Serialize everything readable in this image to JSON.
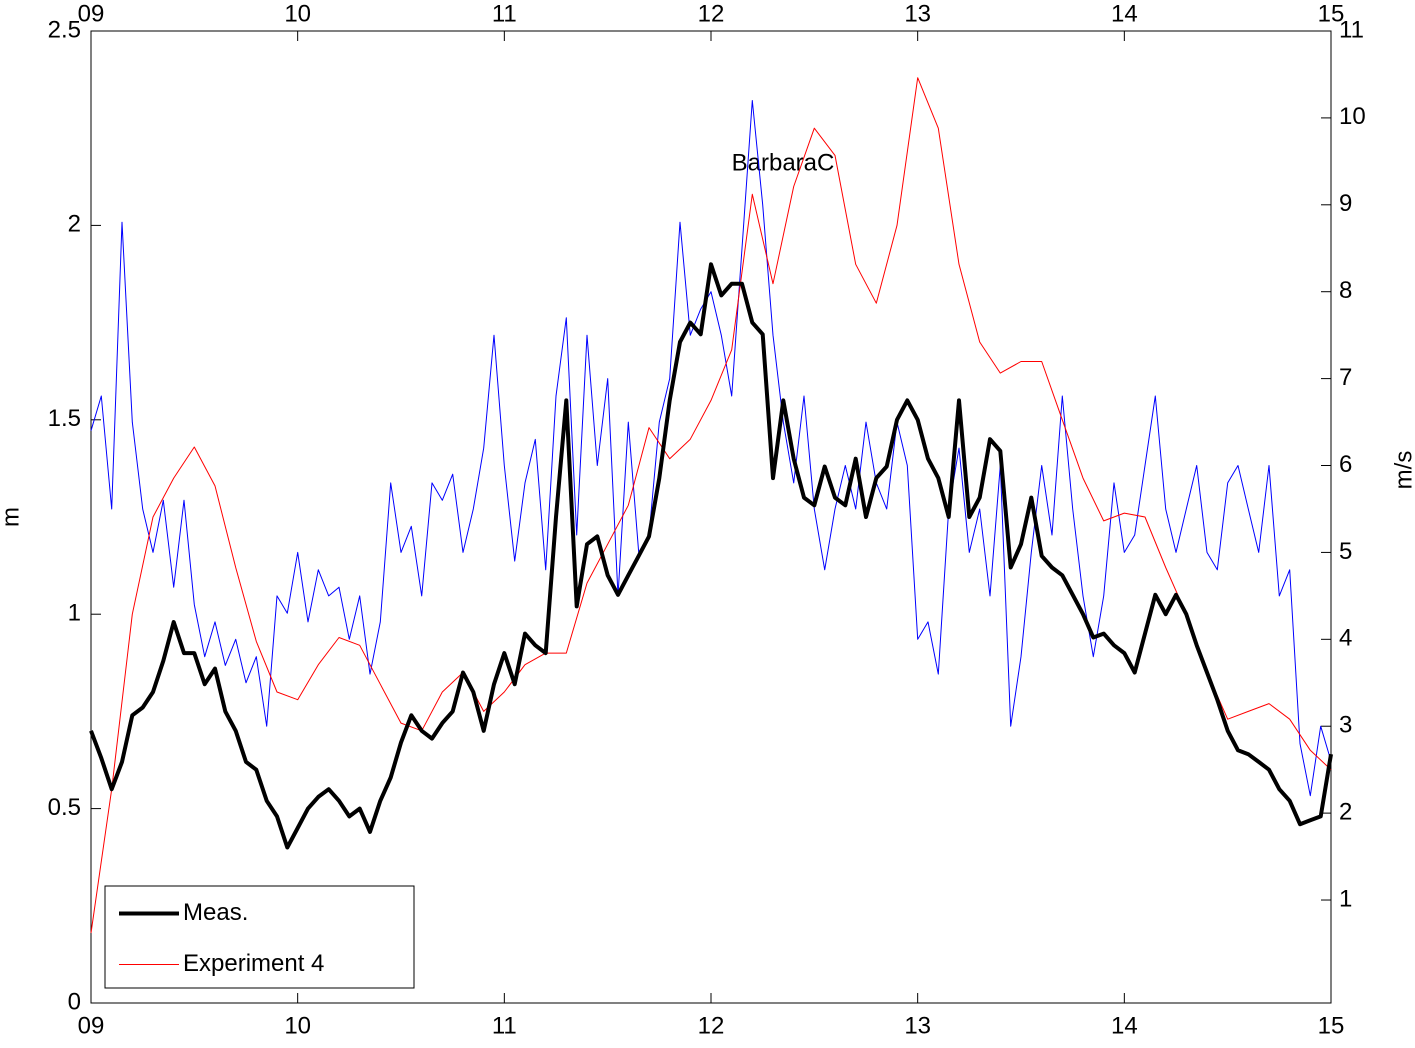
{
  "chart_data": {
    "type": "line",
    "annotation": "BarbaraC",
    "ylabel": "m",
    "y2label": "m/s",
    "xlim": [
      9,
      15
    ],
    "xticks": [
      {
        "value": 9,
        "label": "09"
      },
      10,
      11,
      12,
      13,
      14,
      15
    ],
    "ylim": [
      0,
      2.5
    ],
    "yticks": [
      0,
      0.5,
      1,
      1.5,
      2,
      2.5
    ],
    "y2lim": [
      -0.185,
      11
    ],
    "y2ticks": [
      1,
      2,
      3,
      4,
      5,
      6,
      7,
      8,
      9,
      10,
      11
    ],
    "legend": "lower left",
    "series": [
      {
        "name": "Meas.",
        "color": "#000000",
        "line_width": 4,
        "axis": "y",
        "x": [
          9,
          9.05,
          9.1,
          9.15,
          9.2,
          9.25,
          9.3,
          9.35,
          9.4,
          9.45,
          9.5,
          9.55,
          9.6,
          9.65,
          9.7,
          9.75,
          9.8,
          9.85,
          9.9,
          9.95,
          10,
          10.05,
          10.1,
          10.15,
          10.2,
          10.25,
          10.3,
          10.35,
          10.4,
          10.45,
          10.5,
          10.55,
          10.6,
          10.65,
          10.7,
          10.75,
          10.8,
          10.85,
          10.9,
          10.95,
          11,
          11.05,
          11.1,
          11.15,
          11.2,
          11.25,
          11.3,
          11.35,
          11.4,
          11.45,
          11.5,
          11.55,
          11.6,
          11.65,
          11.7,
          11.75,
          11.8,
          11.85,
          11.9,
          11.95,
          12,
          12.05,
          12.1,
          12.15,
          12.2,
          12.25,
          12.3,
          12.35,
          12.4,
          12.45,
          12.5,
          12.55,
          12.6,
          12.65,
          12.7,
          12.75,
          12.8,
          12.85,
          12.9,
          12.95,
          13,
          13.05,
          13.1,
          13.15,
          13.2,
          13.25,
          13.3,
          13.35,
          13.4,
          13.45,
          13.5,
          13.55,
          13.6,
          13.65,
          13.7,
          13.75,
          13.8,
          13.85,
          13.9,
          13.95,
          14,
          14.05,
          14.1,
          14.15,
          14.2,
          14.25,
          14.3,
          14.35,
          14.4,
          14.45,
          14.5,
          14.55,
          14.6,
          14.65,
          14.7,
          14.75,
          14.8,
          14.85,
          14.9,
          14.95,
          15
        ],
        "values": [
          0.7,
          0.63,
          0.55,
          0.62,
          0.74,
          0.76,
          0.8,
          0.88,
          0.98,
          0.9,
          0.9,
          0.82,
          0.86,
          0.75,
          0.7,
          0.62,
          0.6,
          0.52,
          0.48,
          0.4,
          0.45,
          0.5,
          0.53,
          0.55,
          0.52,
          0.48,
          0.5,
          0.44,
          0.52,
          0.58,
          0.67,
          0.74,
          0.7,
          0.68,
          0.72,
          0.75,
          0.85,
          0.8,
          0.7,
          0.82,
          0.9,
          0.82,
          0.95,
          0.92,
          0.9,
          1.25,
          1.55,
          1.02,
          1.18,
          1.2,
          1.1,
          1.05,
          1.1,
          1.15,
          1.2,
          1.35,
          1.55,
          1.7,
          1.75,
          1.72,
          1.9,
          1.82,
          1.85,
          1.85,
          1.75,
          1.72,
          1.35,
          1.55,
          1.4,
          1.3,
          1.28,
          1.38,
          1.3,
          1.28,
          1.4,
          1.25,
          1.35,
          1.38,
          1.5,
          1.55,
          1.5,
          1.4,
          1.35,
          1.25,
          1.55,
          1.25,
          1.3,
          1.45,
          1.42,
          1.12,
          1.18,
          1.3,
          1.15,
          1.12,
          1.1,
          1.05,
          1.0,
          0.94,
          0.95,
          0.92,
          0.9,
          0.85,
          0.95,
          1.05,
          1.0,
          1.05,
          1.0,
          0.92,
          0.85,
          0.78,
          0.7,
          0.65,
          0.64,
          0.62,
          0.6,
          0.55,
          0.52,
          0.46,
          0.47,
          0.48,
          0.64
        ]
      },
      {
        "name": "Experiment 4",
        "color": "#ff0000",
        "line_width": 1,
        "axis": "y",
        "x": [
          9,
          9.1,
          9.2,
          9.3,
          9.4,
          9.5,
          9.6,
          9.7,
          9.8,
          9.9,
          10,
          10.1,
          10.2,
          10.3,
          10.4,
          10.5,
          10.6,
          10.7,
          10.8,
          10.9,
          11,
          11.1,
          11.2,
          11.3,
          11.4,
          11.5,
          11.6,
          11.7,
          11.8,
          11.9,
          12,
          12.1,
          12.2,
          12.3,
          12.4,
          12.5,
          12.6,
          12.7,
          12.8,
          12.9,
          13,
          13.1,
          13.2,
          13.3,
          13.4,
          13.5,
          13.6,
          13.7,
          13.8,
          13.9,
          14,
          14.1,
          14.2,
          14.3,
          14.4,
          14.5,
          14.6,
          14.7,
          14.8,
          14.9,
          15
        ],
        "values": [
          0.18,
          0.55,
          1.0,
          1.25,
          1.35,
          1.43,
          1.33,
          1.12,
          0.93,
          0.8,
          0.78,
          0.87,
          0.94,
          0.92,
          0.82,
          0.72,
          0.7,
          0.8,
          0.85,
          0.75,
          0.8,
          0.87,
          0.9,
          0.9,
          1.08,
          1.18,
          1.28,
          1.48,
          1.4,
          1.45,
          1.55,
          1.68,
          2.08,
          1.85,
          2.1,
          2.25,
          2.18,
          1.9,
          1.8,
          2.0,
          2.38,
          2.25,
          1.9,
          1.7,
          1.62,
          1.65,
          1.65,
          1.5,
          1.35,
          1.24,
          1.26,
          1.25,
          1.12,
          1.0,
          0.85,
          0.73,
          0.75,
          0.77,
          0.73,
          0.65,
          0.6
        ]
      },
      {
        "color": "#0000ff",
        "line_width": 1,
        "axis": "y2",
        "x": [
          9,
          9.05,
          9.1,
          9.15,
          9.2,
          9.25,
          9.3,
          9.35,
          9.4,
          9.45,
          9.5,
          9.55,
          9.6,
          9.65,
          9.7,
          9.75,
          9.8,
          9.85,
          9.9,
          9.95,
          10,
          10.05,
          10.1,
          10.15,
          10.2,
          10.25,
          10.3,
          10.35,
          10.4,
          10.45,
          10.5,
          10.55,
          10.6,
          10.65,
          10.7,
          10.75,
          10.8,
          10.85,
          10.9,
          10.95,
          11,
          11.05,
          11.1,
          11.15,
          11.2,
          11.25,
          11.3,
          11.35,
          11.4,
          11.45,
          11.5,
          11.55,
          11.6,
          11.65,
          11.7,
          11.75,
          11.8,
          11.85,
          11.9,
          11.95,
          12,
          12.05,
          12.1,
          12.15,
          12.2,
          12.25,
          12.3,
          12.35,
          12.4,
          12.45,
          12.5,
          12.55,
          12.6,
          12.65,
          12.7,
          12.75,
          12.8,
          12.85,
          12.9,
          12.95,
          13,
          13.05,
          13.1,
          13.15,
          13.2,
          13.25,
          13.3,
          13.35,
          13.4,
          13.45,
          13.5,
          13.55,
          13.6,
          13.65,
          13.7,
          13.75,
          13.8,
          13.85,
          13.9,
          13.95,
          14,
          14.05,
          14.1,
          14.15,
          14.2,
          14.25,
          14.3,
          14.35,
          14.4,
          14.45,
          14.5,
          14.55,
          14.6,
          14.65,
          14.7,
          14.75,
          14.8,
          14.85,
          14.9,
          14.95,
          15
        ],
        "values": [
          6.4,
          6.8,
          5.5,
          8.8,
          6.5,
          5.5,
          5.0,
          5.6,
          4.6,
          5.6,
          4.4,
          3.8,
          4.2,
          3.7,
          4.0,
          3.5,
          3.8,
          3.0,
          4.5,
          4.3,
          5.0,
          4.2,
          4.8,
          4.5,
          4.6,
          4.0,
          4.5,
          3.6,
          4.2,
          5.8,
          5.0,
          5.3,
          4.5,
          5.8,
          5.6,
          5.9,
          5.0,
          5.5,
          6.2,
          7.5,
          6.0,
          4.9,
          5.8,
          6.3,
          4.8,
          6.8,
          7.7,
          5.2,
          7.5,
          6.0,
          7.0,
          4.5,
          6.5,
          5.0,
          5.2,
          6.5,
          7.0,
          8.8,
          7.5,
          7.8,
          8.0,
          7.5,
          6.8,
          8.5,
          10.2,
          9.0,
          7.5,
          6.5,
          5.8,
          6.8,
          5.5,
          4.8,
          5.5,
          6.0,
          5.5,
          6.5,
          5.8,
          5.5,
          6.5,
          6.0,
          4.0,
          4.2,
          3.6,
          5.5,
          6.2,
          5.0,
          5.5,
          4.5,
          6.0,
          3.0,
          3.8,
          5.0,
          6.0,
          5.2,
          6.8,
          5.5,
          4.5,
          3.8,
          4.5,
          5.8,
          5.0,
          5.2,
          6.0,
          6.8,
          5.5,
          5.0,
          5.5,
          6.0,
          5.0,
          4.8,
          5.8,
          6.0,
          5.5,
          5.0,
          6.0,
          4.5,
          4.8,
          2.8,
          2.2,
          3.0,
          2.6
        ]
      }
    ]
  }
}
